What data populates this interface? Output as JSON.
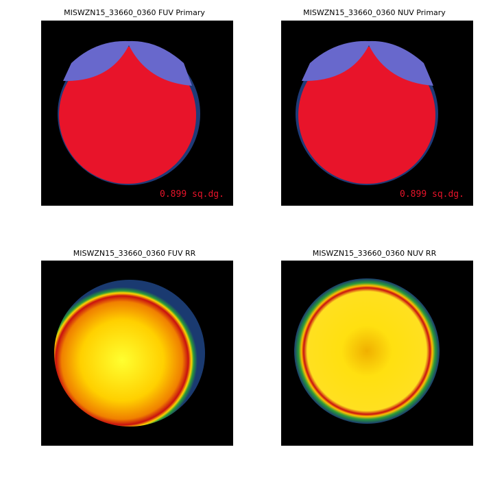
{
  "panels": [
    {
      "title": "MISWZN15_33660_0360 FUV Primary",
      "area_label": "0.899 sq.dg."
    },
    {
      "title": "MISWZN15_33660_0360 NUV Primary",
      "area_label": "0.899 sq.dg."
    },
    {
      "title": "MISWZN15_33660_0360 FUV RR"
    },
    {
      "title": "MISWZN15_33660_0360 NUV RR"
    }
  ]
}
